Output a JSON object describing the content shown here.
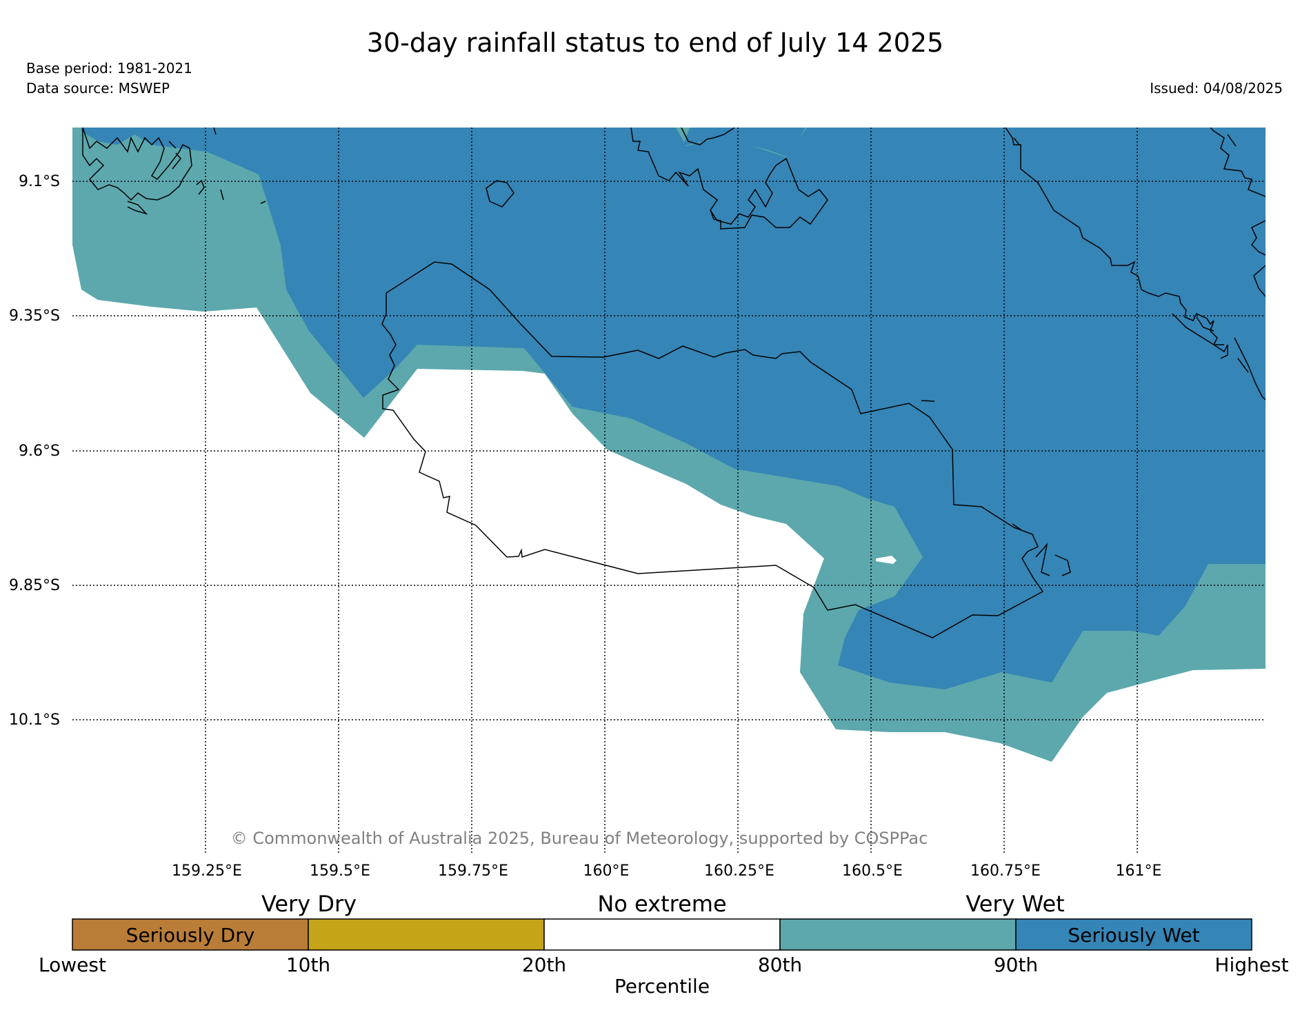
{
  "title": "30-day rainfall status to end of July 14 2025",
  "base_period": "Base period: 1981-2021",
  "data_source": "Data source: MSWEP",
  "issued": "Issued: 04/08/2025",
  "copyright": "© Commonwealth of Australia 2025, Bureau of Meteorology, supported by COSPPac",
  "map": {
    "lon_range": [
      159.0,
      161.25
    ],
    "lat_range": [
      -9.0,
      -10.35
    ],
    "lon_ticks": [
      "159.25°E",
      "159.5°E",
      "159.75°E",
      "160°E",
      "160.25°E",
      "160.5°E",
      "160.75°E",
      "161°E"
    ],
    "lat_ticks": [
      "9.1°S",
      "9.35°S",
      "9.6°S",
      "9.85°S",
      "10.1°S"
    ],
    "grid": true
  },
  "legend": {
    "groups": [
      "Very Dry",
      "No extreme",
      "Very Wet"
    ],
    "bins": [
      {
        "label": "Seriously Dry",
        "color": "#b97d38"
      },
      {
        "label": "",
        "color": "#c5a41a"
      },
      {
        "label": "",
        "color": "#ffffff"
      },
      {
        "label": "",
        "color": "#5ca8ad"
      },
      {
        "label": "Seriously Wet",
        "color": "#3585b6"
      }
    ],
    "ticks": [
      "Lowest",
      "10th",
      "20th",
      "80th",
      "90th",
      "Highest"
    ],
    "axis_label": "Percentile"
  },
  "colors": {
    "very_wet": "#5ca8ad",
    "seriously_wet": "#3585b6",
    "coastline": "#000000"
  }
}
